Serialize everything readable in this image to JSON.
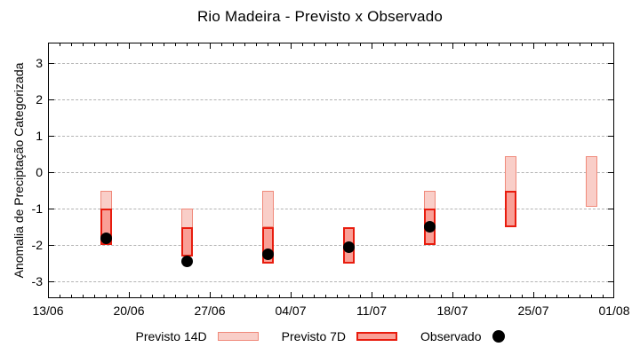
{
  "colors": {
    "p14_fill": "#f9cec8",
    "p14_border": "#f0897a",
    "p7_fill": "#f99f96",
    "p7_border": "#e81c0e",
    "observed": "#000000",
    "grid": "#b3b3b3",
    "axis": "#000000",
    "text": "#000000"
  },
  "chart_data": {
    "type": "bar",
    "subtype": "range-bar-forecast-with-observed-scatter",
    "title": "Rio Madeira - Previsto x Observado",
    "xlabel": "",
    "ylabel": "Anomalia de Preciptação Categorizada",
    "ylim": [
      -3.45,
      3.55
    ],
    "y_ticks": [
      -3,
      -2,
      -1,
      0,
      1,
      2,
      3
    ],
    "x_tick_labels": [
      "13/06",
      "20/06",
      "27/06",
      "04/07",
      "11/07",
      "18/07",
      "25/07",
      "01/08"
    ],
    "x_range_days": [
      0,
      49
    ],
    "x_major_tick_interval_days": 7,
    "x_minor_tick_interval_days": 1,
    "grid": "horizontal-dashed",
    "series": [
      {
        "name": "Previsto 14D",
        "kind": "range",
        "swatch": "p14",
        "points": [
          {
            "date": "18/06",
            "day": 5,
            "high": -0.5,
            "low": -2.0
          },
          {
            "date": "25/06",
            "day": 12,
            "high": -1.0,
            "low": -2.3
          },
          {
            "date": "02/07",
            "day": 19,
            "high": -0.5,
            "low": -1.5
          },
          {
            "date": "16/07",
            "day": 33,
            "high": -0.5,
            "low": -2.0
          },
          {
            "date": "23/07",
            "day": 40,
            "high": 0.45,
            "low": -1.5
          },
          {
            "date": "30/07",
            "day": 47,
            "high": 0.45,
            "low": -0.95
          }
        ]
      },
      {
        "name": "Previsto 7D",
        "kind": "range",
        "swatch": "p7",
        "points": [
          {
            "date": "18/06",
            "day": 5,
            "high": -1.0,
            "low": -2.0
          },
          {
            "date": "25/06",
            "day": 12,
            "high": -1.5,
            "low": -2.3
          },
          {
            "date": "02/07",
            "day": 19,
            "high": -1.5,
            "low": -2.5
          },
          {
            "date": "09/07",
            "day": 26,
            "high": -1.5,
            "low": -2.5
          },
          {
            "date": "16/07",
            "day": 33,
            "high": -1.0,
            "low": -2.0
          },
          {
            "date": "23/07",
            "day": 40,
            "high": -0.5,
            "low": -1.5
          }
        ]
      },
      {
        "name": "Observado",
        "kind": "scatter",
        "swatch": "dot",
        "points": [
          {
            "date": "18/06",
            "day": 5,
            "value": -1.8
          },
          {
            "date": "25/06",
            "day": 12,
            "value": -2.45
          },
          {
            "date": "02/07",
            "day": 19,
            "value": -2.25
          },
          {
            "date": "09/07",
            "day": 26,
            "value": -2.05
          },
          {
            "date": "16/07",
            "day": 33,
            "value": -1.5
          }
        ]
      }
    ],
    "legend": {
      "position": "bottom",
      "items": [
        {
          "label": "Previsto 14D",
          "swatch": "p14"
        },
        {
          "label": "Previsto 7D",
          "swatch": "p7"
        },
        {
          "label": "Observado",
          "swatch": "dot"
        }
      ]
    }
  }
}
